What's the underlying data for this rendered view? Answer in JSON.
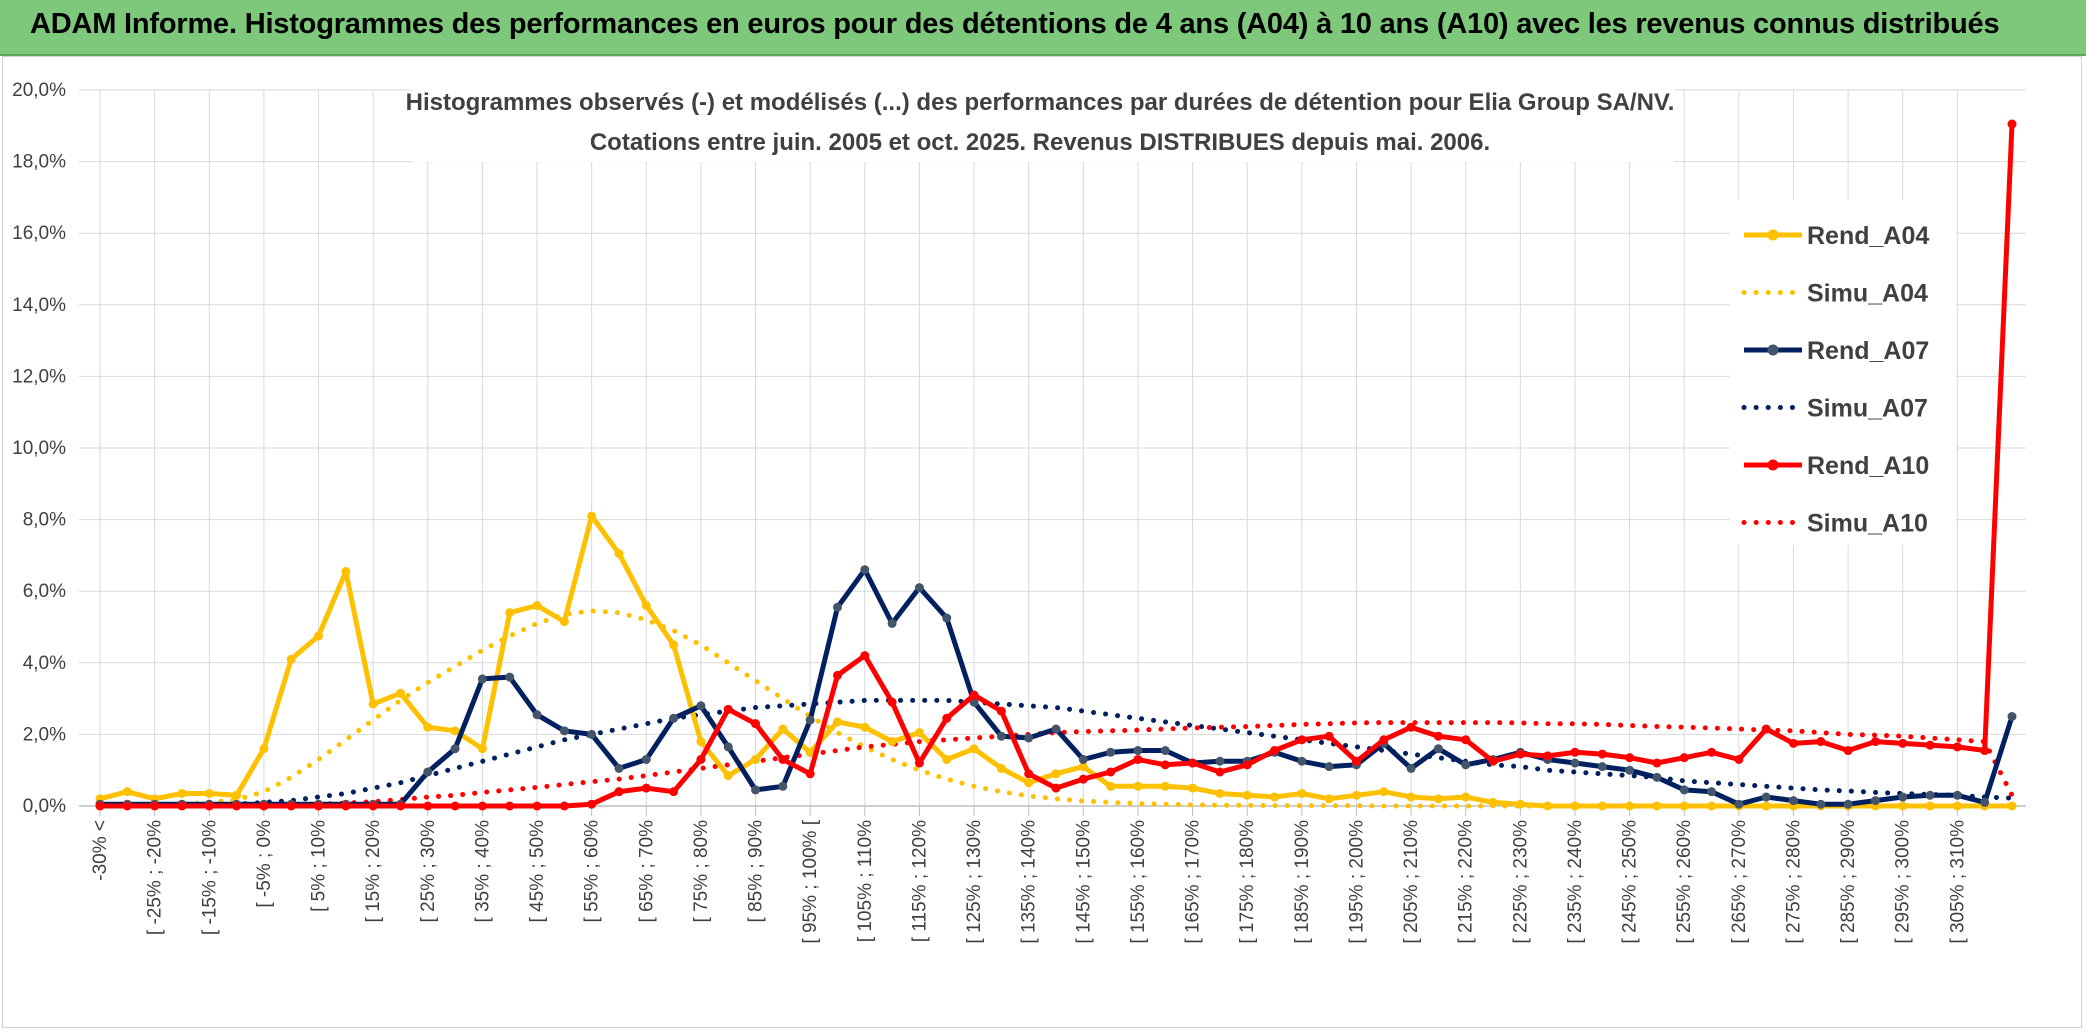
{
  "header": {
    "title": "ADAM Informe. Histogrammes des performances en euros pour des détentions de 4 ans (A04) à 10 ans (A10) avec les revenus connus distribués"
  },
  "chart_data": {
    "type": "line",
    "title": "Histogrammes observés (-) et modélisés (...) des performances par durées de détention pour Elia Group SA/NV.",
    "subtitle": "Cotations entre juin. 2005 et oct. 2025. Revenus DISTRIBUES depuis mai. 2006.",
    "ylim": [
      0,
      20
    ],
    "yticks": [
      "0,0%",
      "2,0%",
      "4,0%",
      "6,0%",
      "8,0%",
      "10,0%",
      "12,0%",
      "14,0%",
      "16,0%",
      "18,0%",
      "20,0%"
    ],
    "grid": true,
    "legend_position": "right",
    "x_tick_labels": [
      "-30% <",
      "[ -25% ; -20%",
      "[ -15% ; -10%",
      "[ -5% ; 0%",
      "[ 5% ; 10%",
      "[ 15% ; 20%",
      "[ 25% ; 30%",
      "[ 35% ; 40%",
      "[ 45% ; 50%",
      "[ 55% ; 60%",
      "[ 65% ; 70%",
      "[ 75% ; 80%",
      "[ 85% ; 90%",
      "[ 95% ; 100% [",
      "[ 105% ; 110%",
      "[ 115% ; 120%",
      "[ 125% ; 130%",
      "[ 135% ; 140%",
      "[ 145% ; 150%",
      "[ 155% ; 160%",
      "[ 165% ; 170%",
      "[ 175% ; 180%",
      "[ 185% ; 190%",
      "[ 195% ; 200%",
      "[ 205% ; 210%",
      "[ 215% ; 220%",
      "[ 225% ; 230%",
      "[ 235% ; 240%",
      "[ 245% ; 250%",
      "[ 255% ; 260%",
      "[ 265% ; 270%",
      "[ 275% ; 280%",
      "[ 285% ; 290%",
      "[ 295% ; 300%",
      "[ 305% ; 310%"
    ],
    "series": [
      {
        "name": "Rend_A04",
        "style": "solid",
        "color": "#ffc000",
        "values": [
          0.2,
          0.4,
          0.2,
          0.35,
          0.35,
          0.3,
          1.6,
          4.1,
          4.75,
          6.55,
          2.85,
          3.15,
          2.2,
          2.1,
          1.6,
          5.4,
          5.6,
          5.15,
          8.1,
          7.05,
          5.6,
          4.5,
          1.8,
          0.85,
          1.3,
          2.15,
          1.5,
          2.35,
          2.2,
          1.8,
          2.05,
          1.3,
          1.6,
          1.05,
          0.65,
          0.9,
          1.1,
          0.55,
          0.55,
          0.55,
          0.5,
          0.35,
          0.3,
          0.25,
          0.35,
          0.2,
          0.3,
          0.4,
          0.25,
          0.2,
          0.25,
          0.1,
          0.05,
          0.0,
          0.0,
          0.0,
          0.0,
          0.0,
          0.0,
          0.0,
          0.0,
          0.0,
          0.0,
          0.0,
          0.0,
          0.0,
          0.0,
          0.0,
          0.0,
          0.0,
          0.0
        ]
      },
      {
        "name": "Simu_A04",
        "style": "dotted",
        "color": "#ffc000",
        "values": [
          0.02,
          0.02,
          0.03,
          0.05,
          0.1,
          0.18,
          0.4,
          0.8,
          1.3,
          1.85,
          2.4,
          2.95,
          3.45,
          3.9,
          4.35,
          4.75,
          5.1,
          5.35,
          5.45,
          5.4,
          5.2,
          4.9,
          4.5,
          4.0,
          3.5,
          3.0,
          2.5,
          2.05,
          1.65,
          1.3,
          1.0,
          0.75,
          0.55,
          0.4,
          0.28,
          0.2,
          0.14,
          0.1,
          0.07,
          0.05,
          0.03,
          0.02,
          0.02,
          0.01,
          0.01,
          0.01,
          0.01,
          0.0,
          0.0,
          0.0,
          0.0,
          0.0,
          0.0,
          0.0,
          0.0,
          0.0,
          0.0,
          0.0,
          0.0,
          0.0,
          0.0,
          0.0,
          0.0,
          0.0,
          0.0,
          0.0,
          0.0,
          0.0,
          0.0,
          0.0,
          0.0
        ]
      },
      {
        "name": "Rend_A07",
        "style": "solid",
        "color": "#002060",
        "values": [
          0.05,
          0.05,
          0.05,
          0.05,
          0.05,
          0.05,
          0.05,
          0.05,
          0.05,
          0.05,
          0.05,
          0.05,
          0.95,
          1.6,
          3.55,
          3.6,
          2.55,
          2.1,
          2.0,
          1.05,
          1.3,
          2.45,
          2.8,
          1.65,
          0.45,
          0.55,
          2.4,
          5.55,
          6.6,
          5.1,
          6.1,
          5.25,
          2.9,
          1.95,
          1.9,
          2.15,
          1.3,
          1.5,
          1.55,
          1.55,
          1.2,
          1.25,
          1.25,
          1.5,
          1.25,
          1.1,
          1.15,
          1.75,
          1.05,
          1.6,
          1.15,
          1.3,
          1.5,
          1.3,
          1.2,
          1.1,
          1.0,
          0.8,
          0.45,
          0.4,
          0.05,
          0.25,
          0.15,
          0.05,
          0.05,
          0.15,
          0.25,
          0.3,
          0.3,
          0.1,
          2.5
        ]
      },
      {
        "name": "Simu_A07",
        "style": "dotted",
        "color": "#002060",
        "values": [
          0.0,
          0.0,
          0.0,
          0.0,
          0.02,
          0.05,
          0.1,
          0.15,
          0.25,
          0.35,
          0.5,
          0.65,
          0.85,
          1.05,
          1.25,
          1.45,
          1.65,
          1.85,
          2.0,
          2.15,
          2.3,
          2.45,
          2.55,
          2.65,
          2.75,
          2.8,
          2.85,
          2.9,
          2.95,
          2.95,
          2.95,
          2.95,
          2.9,
          2.85,
          2.8,
          2.75,
          2.65,
          2.55,
          2.45,
          2.35,
          2.25,
          2.15,
          2.05,
          1.95,
          1.85,
          1.75,
          1.65,
          1.55,
          1.45,
          1.35,
          1.25,
          1.15,
          1.1,
          1.0,
          0.95,
          0.9,
          0.85,
          0.8,
          0.7,
          0.65,
          0.6,
          0.55,
          0.5,
          0.45,
          0.42,
          0.38,
          0.35,
          0.32,
          0.3,
          0.25,
          0.22
        ]
      },
      {
        "name": "Rend_A10",
        "style": "solid",
        "color": "#ff0000",
        "values": [
          0.0,
          0.0,
          0.0,
          0.0,
          0.0,
          0.0,
          0.0,
          0.0,
          0.0,
          0.0,
          0.0,
          0.0,
          0.0,
          0.0,
          0.0,
          0.0,
          0.0,
          0.0,
          0.05,
          0.4,
          0.5,
          0.4,
          1.3,
          2.7,
          2.3,
          1.3,
          0.9,
          3.65,
          4.2,
          2.9,
          1.2,
          2.45,
          3.1,
          2.65,
          0.9,
          0.5,
          0.75,
          0.95,
          1.3,
          1.15,
          1.2,
          0.95,
          1.15,
          1.55,
          1.85,
          1.95,
          1.25,
          1.85,
          2.2,
          1.95,
          1.85,
          1.25,
          1.45,
          1.4,
          1.5,
          1.45,
          1.35,
          1.2,
          1.35,
          1.5,
          1.3,
          2.15,
          1.75,
          1.8,
          1.55,
          1.8,
          1.75,
          1.7,
          1.65,
          1.55,
          19.05
        ]
      },
      {
        "name": "Simu_A10",
        "style": "dotted",
        "color": "#ff0000",
        "values": [
          0.0,
          0.0,
          0.0,
          0.0,
          0.0,
          0.0,
          0.0,
          0.02,
          0.05,
          0.08,
          0.12,
          0.18,
          0.25,
          0.3,
          0.38,
          0.45,
          0.52,
          0.6,
          0.68,
          0.75,
          0.85,
          0.95,
          1.05,
          1.15,
          1.25,
          1.35,
          1.45,
          1.55,
          1.65,
          1.72,
          1.8,
          1.85,
          1.9,
          1.95,
          2.0,
          2.05,
          2.08,
          2.1,
          2.12,
          2.15,
          2.18,
          2.2,
          2.22,
          2.25,
          2.28,
          2.3,
          2.32,
          2.33,
          2.33,
          2.33,
          2.33,
          2.33,
          2.32,
          2.3,
          2.3,
          2.28,
          2.25,
          2.22,
          2.2,
          2.18,
          2.15,
          2.12,
          2.1,
          2.05,
          2.0,
          1.98,
          1.95,
          1.9,
          1.85,
          1.8,
          0.3
        ]
      }
    ]
  }
}
